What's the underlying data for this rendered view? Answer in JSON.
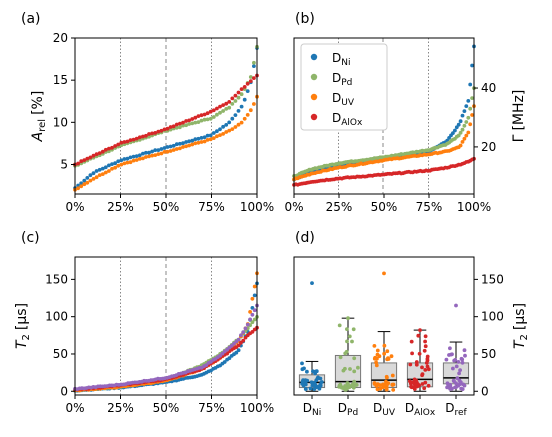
{
  "colors": {
    "Ni": "#1f77b4",
    "Pd": "#8fb56a",
    "UV": "#ff7f0e",
    "AlOx": "#d62728",
    "ref": "#9467bd"
  },
  "legend_labels": [
    "Ni",
    "Pd",
    "UV",
    "AlOx"
  ],
  "chart_data": [
    {
      "panel": "(a)",
      "type": "scatter",
      "ylabel_main": "A",
      "ylabel_sub": "rel",
      "ylabel_unit": "[%]",
      "xticks": [
        "0%",
        "25%",
        "50%",
        "75%",
        "100%"
      ],
      "yticks": [
        "5",
        "10",
        "15",
        "20"
      ],
      "ylim": [
        1.5,
        20
      ],
      "grid": "vertical at 25%, 50%, 75%",
      "series": [
        {
          "key": "Ni",
          "start": 2.2,
          "knots": [
            [
              0,
              2.2
            ],
            [
              0.1,
              4.0
            ],
            [
              0.25,
              5.5
            ],
            [
              0.5,
              7.0
            ],
            [
              0.75,
              8.5
            ],
            [
              0.85,
              10.0
            ],
            [
              0.92,
              12.0
            ],
            [
              0.97,
              15.0
            ],
            [
              1,
              18.8
            ]
          ]
        },
        {
          "key": "Pd",
          "knots": [
            [
              0,
              4.8
            ],
            [
              0.1,
              5.8
            ],
            [
              0.25,
              7.2
            ],
            [
              0.5,
              9.0
            ],
            [
              0.75,
              10.5
            ],
            [
              0.85,
              11.8
            ],
            [
              0.92,
              13.5
            ],
            [
              0.97,
              15.5
            ],
            [
              1,
              19.0
            ]
          ]
        },
        {
          "key": "UV",
          "knots": [
            [
              0,
              2.0
            ],
            [
              0.1,
              3.3
            ],
            [
              0.25,
              5.0
            ],
            [
              0.5,
              6.5
            ],
            [
              0.75,
              8.0
            ],
            [
              0.85,
              9.0
            ],
            [
              0.92,
              10.0
            ],
            [
              0.97,
              11.5
            ],
            [
              1,
              13.0
            ]
          ]
        },
        {
          "key": "AlOx",
          "knots": [
            [
              0,
              5.0
            ],
            [
              0.1,
              6.0
            ],
            [
              0.25,
              7.5
            ],
            [
              0.5,
              9.2
            ],
            [
              0.75,
              11.3
            ],
            [
              0.85,
              12.5
            ],
            [
              0.92,
              14.0
            ],
            [
              0.97,
              15.0
            ],
            [
              1,
              15.6
            ]
          ]
        }
      ]
    },
    {
      "panel": "(b)",
      "type": "scatter",
      "ylabel_main": "Γ",
      "ylabel_unit": "[MHz]",
      "xticks": [
        "0%",
        "25%",
        "50%",
        "75%",
        "100%"
      ],
      "yticks": [
        "20",
        "40"
      ],
      "ylim": [
        4,
        57
      ],
      "grid": "vertical at 25%, 50%, 75%",
      "legend": "top-left",
      "series": [
        {
          "key": "Ni",
          "knots": [
            [
              0,
              9.0
            ],
            [
              0.1,
              11.5
            ],
            [
              0.25,
              13.5
            ],
            [
              0.5,
              16.0
            ],
            [
              0.75,
              18.5
            ],
            [
              0.85,
              22.0
            ],
            [
              0.92,
              28.0
            ],
            [
              0.97,
              36.0
            ],
            [
              1,
              54.0
            ]
          ]
        },
        {
          "key": "Pd",
          "knots": [
            [
              0,
              10.0
            ],
            [
              0.1,
              12.5
            ],
            [
              0.25,
              14.5
            ],
            [
              0.5,
              16.5
            ],
            [
              0.75,
              19.0
            ],
            [
              0.85,
              21.0
            ],
            [
              0.92,
              24.0
            ],
            [
              0.97,
              30.0
            ],
            [
              1,
              40.0
            ]
          ]
        },
        {
          "key": "UV",
          "knots": [
            [
              0,
              9.0
            ],
            [
              0.1,
              11.0
            ],
            [
              0.25,
              13.0
            ],
            [
              0.5,
              15.5
            ],
            [
              0.75,
              17.5
            ],
            [
              0.85,
              18.5
            ],
            [
              0.92,
              20.0
            ],
            [
              0.97,
              25.0
            ],
            [
              1,
              34.0
            ]
          ]
        },
        {
          "key": "AlOx",
          "knots": [
            [
              0,
              7.0
            ],
            [
              0.1,
              8.2
            ],
            [
              0.25,
              9.3
            ],
            [
              0.5,
              10.6
            ],
            [
              0.75,
              12.0
            ],
            [
              0.85,
              13.0
            ],
            [
              0.92,
              14.0
            ],
            [
              0.97,
              15.0
            ],
            [
              1,
              16.0
            ]
          ]
        }
      ]
    },
    {
      "panel": "(c)",
      "type": "scatter",
      "ylabel_main": "T",
      "ylabel_sub": "2",
      "ylabel_unit": "[μs]",
      "xticks": [
        "0%",
        "25%",
        "50%",
        "75%",
        "100%"
      ],
      "yticks": [
        "0",
        "50",
        "100",
        "150"
      ],
      "ylim": [
        -5,
        180
      ],
      "grid": "vertical at 25%, 50%, 75%",
      "series": [
        {
          "key": "Ni",
          "knots": [
            [
              0,
              1
            ],
            [
              0.25,
              5
            ],
            [
              0.5,
              12
            ],
            [
              0.7,
              22
            ],
            [
              0.8,
              35
            ],
            [
              0.9,
              55
            ],
            [
              0.95,
              80
            ],
            [
              1,
              145
            ]
          ]
        },
        {
          "key": "Pd",
          "knots": [
            [
              0,
              1
            ],
            [
              0.25,
              6
            ],
            [
              0.5,
              15
            ],
            [
              0.7,
              35
            ],
            [
              0.8,
              50
            ],
            [
              0.9,
              70
            ],
            [
              0.95,
              85
            ],
            [
              1,
              100
            ]
          ]
        },
        {
          "key": "UV",
          "knots": [
            [
              0,
              1
            ],
            [
              0.25,
              6
            ],
            [
              0.5,
              14
            ],
            [
              0.7,
              30
            ],
            [
              0.8,
              45
            ],
            [
              0.9,
              68
            ],
            [
              0.95,
              90
            ],
            [
              1,
              158
            ]
          ]
        },
        {
          "key": "AlOx",
          "knots": [
            [
              0,
              2
            ],
            [
              0.25,
              8
            ],
            [
              0.5,
              16
            ],
            [
              0.7,
              30
            ],
            [
              0.8,
              45
            ],
            [
              0.9,
              62
            ],
            [
              0.95,
              75
            ],
            [
              1,
              85
            ]
          ]
        },
        {
          "key": "ref",
          "knots": [
            [
              0,
              3
            ],
            [
              0.25,
              9
            ],
            [
              0.5,
              18
            ],
            [
              0.7,
              32
            ],
            [
              0.8,
              48
            ],
            [
              0.9,
              70
            ],
            [
              0.95,
              90
            ],
            [
              1,
              115
            ]
          ]
        }
      ]
    },
    {
      "panel": "(d)",
      "type": "box",
      "ylabel_main": "T",
      "ylabel_sub": "2",
      "ylabel_unit": "[μs]",
      "yticks": [
        "0",
        "50",
        "100",
        "150"
      ],
      "ylim": [
        -5,
        180
      ],
      "categories": [
        {
          "key": "Ni",
          "label": "Ni",
          "q1": 5,
          "median": 12,
          "q3": 22,
          "whisker_low": 0,
          "whisker_high": 40,
          "max": 145
        },
        {
          "key": "Pd",
          "label": "Pd",
          "q1": 5,
          "median": 13,
          "q3": 48,
          "whisker_low": 0,
          "whisker_high": 98,
          "max": 98
        },
        {
          "key": "UV",
          "label": "UV",
          "q1": 5,
          "median": 15,
          "q3": 38,
          "whisker_low": 0,
          "whisker_high": 80,
          "max": 158
        },
        {
          "key": "AlOx",
          "label": "AlOx",
          "q1": 6,
          "median": 16,
          "q3": 38,
          "whisker_low": 0,
          "whisker_high": 82,
          "max": 82
        },
        {
          "key": "ref",
          "label": "ref",
          "q1": 10,
          "median": 18,
          "q3": 38,
          "whisker_low": 0,
          "whisker_high": 66,
          "max": 115
        }
      ]
    }
  ]
}
